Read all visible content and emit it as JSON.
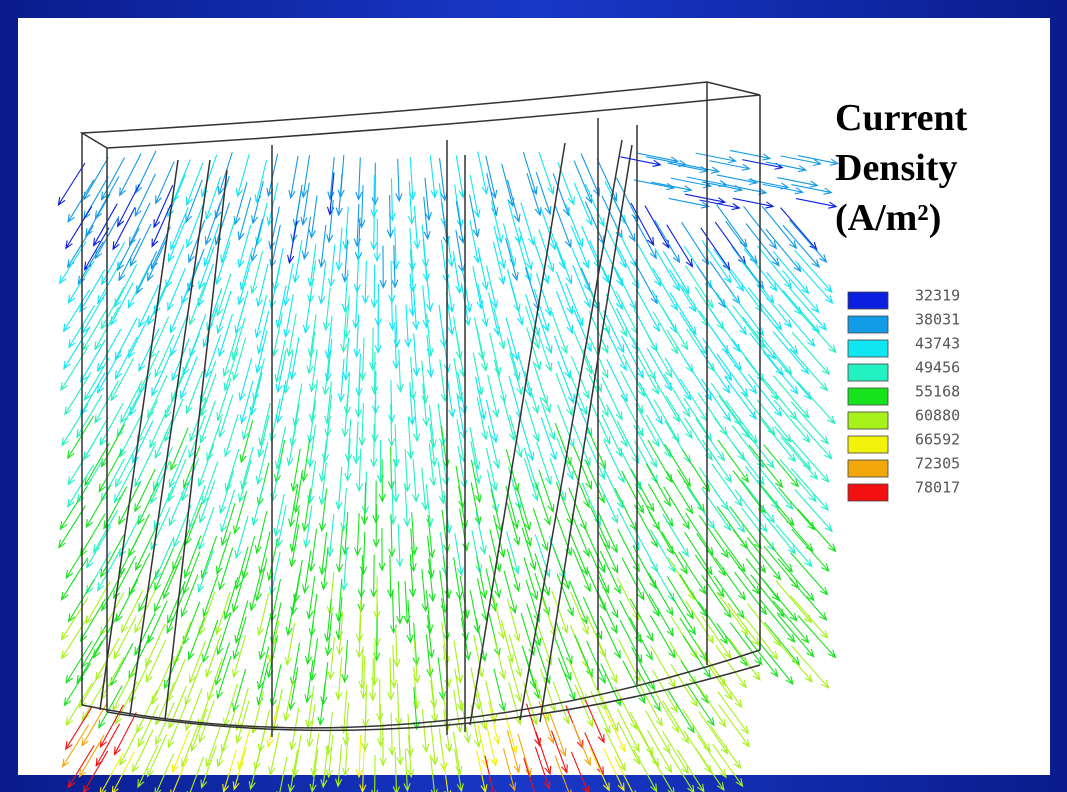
{
  "title": [
    "Current",
    "Density",
    "(A/m²)"
  ],
  "legend": [
    {
      "value": 32319,
      "color": "#0a1fe0"
    },
    {
      "value": 38031,
      "color": "#129be6"
    },
    {
      "value": 43743,
      "color": "#0fe6f2"
    },
    {
      "value": 49456,
      "color": "#22f2c2"
    },
    {
      "value": 55168,
      "color": "#16e31c"
    },
    {
      "value": 60880,
      "color": "#a6f21a"
    },
    {
      "value": 66592,
      "color": "#f2f20a"
    },
    {
      "value": 72305,
      "color": "#f2a80a"
    },
    {
      "value": 78017,
      "color": "#f21010"
    }
  ]
}
